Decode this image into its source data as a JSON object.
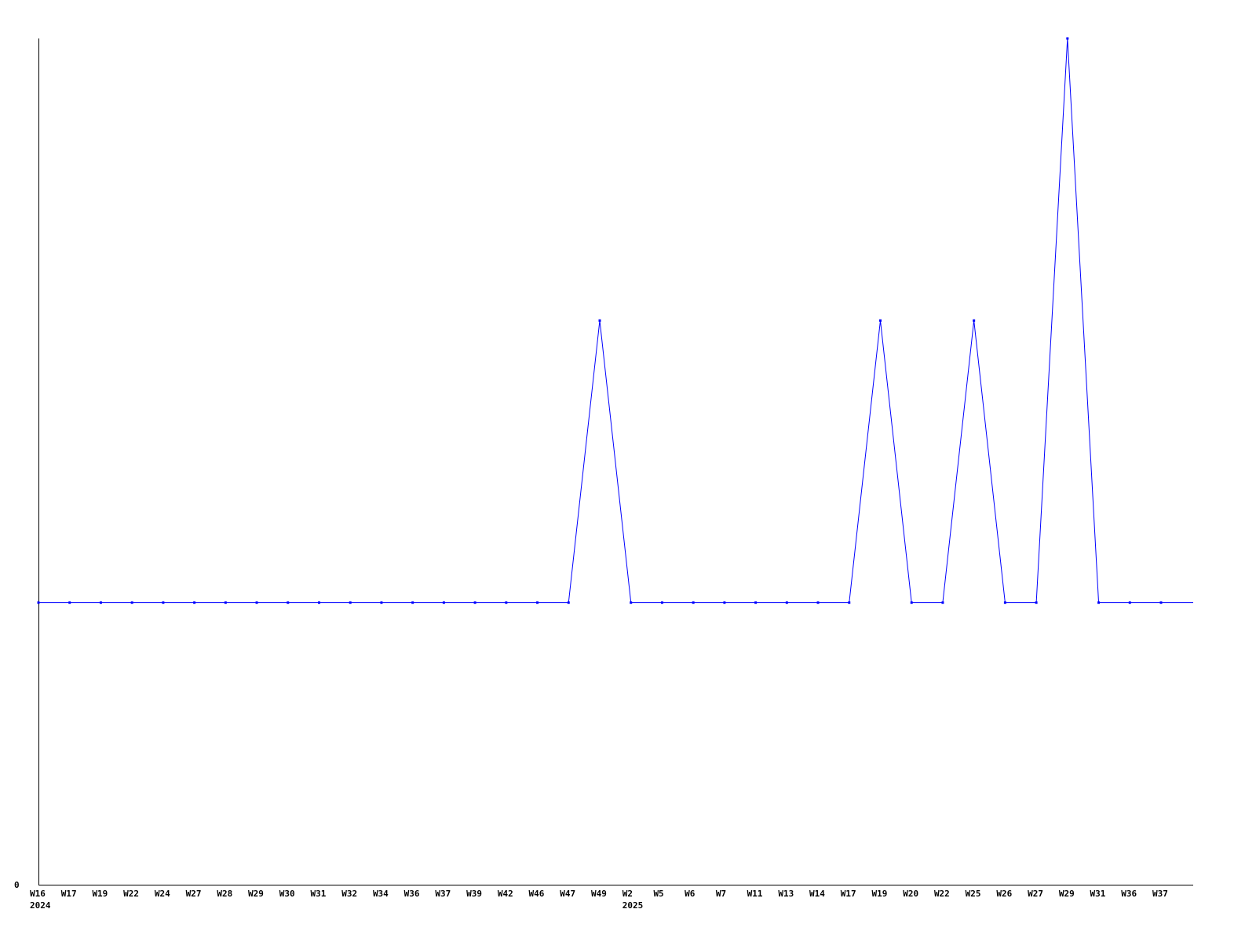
{
  "chart_data": {
    "type": "line",
    "title": "",
    "xlabel": "",
    "ylabel": "",
    "ylim": [
      0,
      3
    ],
    "y_tick_labels": [
      "0"
    ],
    "grid": false,
    "line_color": "#0000ff",
    "axis_color": "#000000",
    "categories": [
      "W16",
      "W17",
      "W19",
      "W22",
      "W24",
      "W27",
      "W28",
      "W29",
      "W30",
      "W31",
      "W32",
      "W34",
      "W36",
      "W37",
      "W39",
      "W42",
      "W46",
      "W47",
      "W49",
      "W2",
      "W5",
      "W6",
      "W7",
      "W11",
      "W13",
      "W14",
      "W17",
      "W19",
      "W20",
      "W22",
      "W25",
      "W26",
      "W27",
      "W29",
      "W31",
      "W36",
      "W37"
    ],
    "year_labels": [
      {
        "index": 0,
        "label": "2024"
      },
      {
        "index": 19,
        "label": "2025"
      }
    ],
    "series": [
      {
        "values": [
          1,
          1,
          1,
          1,
          1,
          1,
          1,
          1,
          1,
          1,
          1,
          1,
          1,
          1,
          1,
          1,
          1,
          1,
          2,
          1,
          1,
          1,
          1,
          1,
          1,
          1,
          1,
          2,
          1,
          1,
          2,
          1,
          1,
          3,
          1,
          1,
          1
        ]
      }
    ]
  }
}
